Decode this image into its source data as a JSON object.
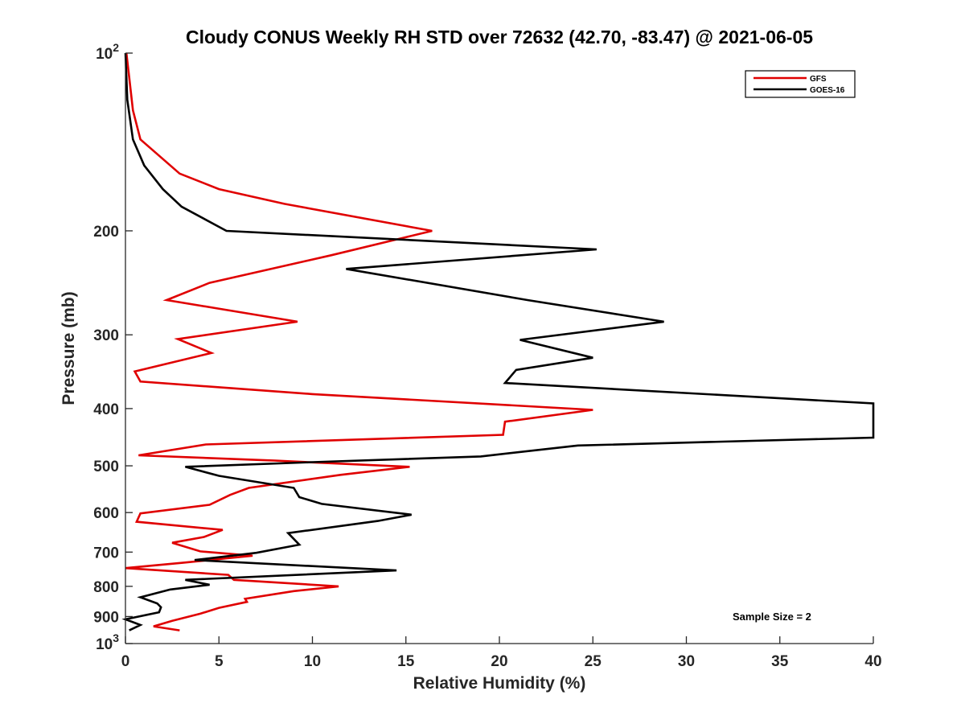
{
  "chart_data": {
    "type": "line",
    "title": "Cloudy CONUS Weekly RH STD over 72632 (42.70, -83.47) @ 2021-06-05",
    "xlabel": "Relative Humidity (%)",
    "ylabel": "Pressure (mb)",
    "xlim": [
      0,
      40
    ],
    "ylim": [
      100,
      1000
    ],
    "y_scale": "log",
    "y_reversed": true,
    "x_ticks": [
      0,
      5,
      10,
      15,
      20,
      25,
      30,
      35,
      40
    ],
    "x_tick_labels": [
      "0",
      "5",
      "10",
      "15",
      "20",
      "25",
      "30",
      "35",
      "40"
    ],
    "y_ticks": [
      100,
      200,
      300,
      400,
      500,
      600,
      700,
      800,
      900,
      1000
    ],
    "y_tick_labels": [
      {
        "base": "10",
        "exp": "2"
      },
      {
        "base": "200"
      },
      {
        "base": "300"
      },
      {
        "base": "400"
      },
      {
        "base": "500"
      },
      {
        "base": "600"
      },
      {
        "base": "700"
      },
      {
        "base": "800"
      },
      {
        "base": "900"
      },
      {
        "base": "10",
        "exp": "3"
      }
    ],
    "grid": false,
    "legend_position": "top-right",
    "annotation": "Sample Size = 2",
    "series": [
      {
        "name": "GFS",
        "color": "#e00000",
        "points": [
          [
            0.05,
            100
          ],
          [
            0.2,
            110
          ],
          [
            0.4,
            125
          ],
          [
            0.8,
            140
          ],
          [
            2.9,
            160
          ],
          [
            5.0,
            170
          ],
          [
            8.5,
            180
          ],
          [
            16.4,
            200
          ],
          [
            11.0,
            220
          ],
          [
            4.5,
            245
          ],
          [
            2.2,
            262
          ],
          [
            9.2,
            285
          ],
          [
            2.8,
            305
          ],
          [
            4.6,
            322
          ],
          [
            0.5,
            346
          ],
          [
            0.8,
            360
          ],
          [
            10.0,
            378
          ],
          [
            25.0,
            402
          ],
          [
            20.3,
            421
          ],
          [
            20.2,
            443
          ],
          [
            4.3,
            460
          ],
          [
            0.7,
            480
          ],
          [
            8.0,
            490
          ],
          [
            15.2,
            502
          ],
          [
            11.5,
            518
          ],
          [
            6.6,
            545
          ],
          [
            5.6,
            560
          ],
          [
            4.5,
            582
          ],
          [
            0.8,
            602
          ],
          [
            0.6,
            622
          ],
          [
            5.2,
            642
          ],
          [
            4.2,
            660
          ],
          [
            2.5,
            675
          ],
          [
            4.0,
            698
          ],
          [
            6.8,
            710
          ],
          [
            3.0,
            730
          ],
          [
            0.0,
            745
          ],
          [
            5.5,
            765
          ],
          [
            5.8,
            780
          ],
          [
            11.4,
            800
          ],
          [
            9.0,
            815
          ],
          [
            6.4,
            840
          ],
          [
            6.5,
            850
          ],
          [
            5.0,
            870
          ],
          [
            4.0,
            890
          ],
          [
            2.5,
            915
          ],
          [
            1.5,
            935
          ],
          [
            2.9,
            950
          ]
        ]
      },
      {
        "name": "GOES-16",
        "color": "#000000",
        "points": [
          [
            0.0,
            100
          ],
          [
            0.1,
            120
          ],
          [
            0.4,
            140
          ],
          [
            1.0,
            155
          ],
          [
            2.0,
            170
          ],
          [
            3.0,
            182
          ],
          [
            5.4,
            200
          ],
          [
            25.2,
            215
          ],
          [
            11.8,
            232
          ],
          [
            21.5,
            262
          ],
          [
            28.8,
            285
          ],
          [
            21.1,
            306
          ],
          [
            25.0,
            328
          ],
          [
            20.9,
            344
          ],
          [
            20.3,
            362
          ],
          [
            40.0,
            392
          ],
          [
            40.0,
            448
          ],
          [
            24.2,
            462
          ],
          [
            19.0,
            482
          ],
          [
            10.0,
            493
          ],
          [
            3.2,
            502
          ],
          [
            5.0,
            520
          ],
          [
            9.0,
            545
          ],
          [
            9.3,
            565
          ],
          [
            10.5,
            580
          ],
          [
            15.3,
            605
          ],
          [
            13.5,
            620
          ],
          [
            8.7,
            650
          ],
          [
            9.3,
            680
          ],
          [
            7.0,
            702
          ],
          [
            3.7,
            722
          ],
          [
            14.5,
            752
          ],
          [
            3.2,
            780
          ],
          [
            4.5,
            795
          ],
          [
            2.4,
            810
          ],
          [
            0.8,
            835
          ],
          [
            1.7,
            855
          ],
          [
            1.9,
            868
          ],
          [
            1.8,
            885
          ],
          [
            0.0,
            910
          ],
          [
            0.8,
            930
          ],
          [
            0.2,
            950
          ]
        ]
      }
    ]
  }
}
